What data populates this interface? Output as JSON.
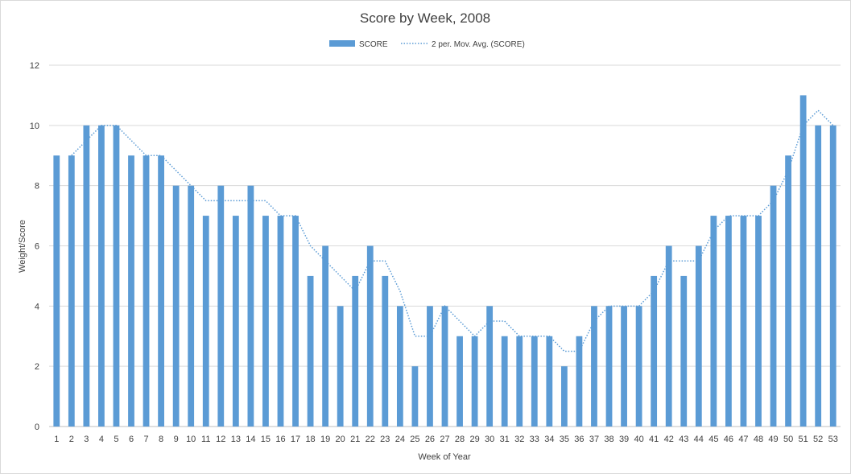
{
  "chart_data": {
    "type": "bar",
    "title": "Score by Week, 2008",
    "xlabel": "Week of Year",
    "ylabel": "Weight/Score",
    "ylim": [
      0,
      12
    ],
    "yticks": [
      0,
      2,
      4,
      6,
      8,
      10,
      12
    ],
    "grid": true,
    "legend_position": "top",
    "categories": [
      "1",
      "2",
      "3",
      "4",
      "5",
      "6",
      "7",
      "8",
      "9",
      "10",
      "11",
      "12",
      "13",
      "14",
      "15",
      "16",
      "17",
      "18",
      "19",
      "20",
      "21",
      "22",
      "23",
      "24",
      "25",
      "26",
      "27",
      "28",
      "29",
      "30",
      "31",
      "32",
      "33",
      "34",
      "35",
      "36",
      "37",
      "38",
      "39",
      "40",
      "41",
      "42",
      "43",
      "44",
      "45",
      "46",
      "47",
      "48",
      "49",
      "50",
      "51",
      "52",
      "53"
    ],
    "series": [
      {
        "name": "SCORE",
        "type": "bar",
        "color": "#5b9bd5",
        "values": [
          9,
          9,
          10,
          10,
          10,
          9,
          9,
          9,
          8,
          8,
          7,
          8,
          7,
          8,
          7,
          7,
          7,
          5,
          6,
          4,
          5,
          6,
          5,
          4,
          2,
          4,
          4,
          3,
          3,
          4,
          3,
          3,
          3,
          3,
          2,
          3,
          4,
          4,
          4,
          4,
          5,
          6,
          5,
          6,
          7,
          7,
          7,
          7,
          8,
          9,
          11,
          10,
          10
        ]
      },
      {
        "name": "2 per. Mov. Avg. (SCORE)",
        "type": "line",
        "style": "dotted",
        "color": "#5b9bd5",
        "values": [
          null,
          9,
          9.5,
          10,
          10,
          9.5,
          9,
          9,
          8.5,
          8,
          7.5,
          7.5,
          7.5,
          7.5,
          7.5,
          7,
          7,
          6,
          5.5,
          5,
          4.5,
          5.5,
          5.5,
          4.5,
          3,
          3,
          4,
          3.5,
          3,
          3.5,
          3.5,
          3,
          3,
          3,
          2.5,
          2.5,
          3.5,
          4,
          4,
          4,
          4.5,
          5.5,
          5.5,
          5.5,
          6.5,
          7,
          7,
          7,
          7.5,
          8.5,
          10,
          10.5,
          10
        ]
      }
    ]
  }
}
